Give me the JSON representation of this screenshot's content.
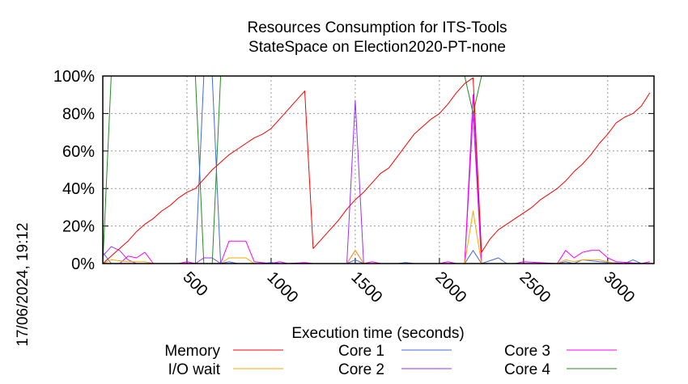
{
  "chart_data": {
    "type": "line",
    "title": [
      "Resources Consumption for ITS-Tools",
      "StateSpace on Election2020-PT-none"
    ],
    "xlabel": "Execution time (seconds)",
    "ylabel": "",
    "xlim": [
      0,
      3275
    ],
    "ylim": [
      0,
      100
    ],
    "grid": true,
    "legend_placement": "bottom",
    "x_ticks": [
      500,
      1000,
      1500,
      2000,
      2500,
      3000
    ],
    "x_tick_labels": [
      "500",
      "1000",
      "1500",
      "2000",
      "2500",
      "3000"
    ],
    "y_ticks": [
      0,
      20,
      40,
      60,
      80,
      100
    ],
    "y_tick_labels": [
      "0%",
      "20%",
      "40%",
      "60%",
      "80%",
      "100%"
    ],
    "timestamp": "17/06/2024, 19:12",
    "series": [
      {
        "name": "Memory",
        "color": "#ff0000",
        "points": [
          [
            0,
            0
          ],
          [
            50,
            4
          ],
          [
            100,
            8
          ],
          [
            150,
            12
          ],
          [
            200,
            17
          ],
          [
            250,
            21
          ],
          [
            300,
            24
          ],
          [
            350,
            28
          ],
          [
            400,
            31
          ],
          [
            450,
            35
          ],
          [
            500,
            38
          ],
          [
            550,
            40
          ],
          [
            600,
            45
          ],
          [
            650,
            50
          ],
          [
            700,
            54
          ],
          [
            750,
            58
          ],
          [
            800,
            61
          ],
          [
            850,
            64
          ],
          [
            900,
            67
          ],
          [
            950,
            69
          ],
          [
            1000,
            72
          ],
          [
            1050,
            77
          ],
          [
            1100,
            82
          ],
          [
            1150,
            87
          ],
          [
            1200,
            92
          ],
          [
            1250,
            8
          ],
          [
            1300,
            13
          ],
          [
            1350,
            18
          ],
          [
            1400,
            23
          ],
          [
            1450,
            29
          ],
          [
            1500,
            34
          ],
          [
            1550,
            38
          ],
          [
            1600,
            43
          ],
          [
            1650,
            48
          ],
          [
            1700,
            51
          ],
          [
            1750,
            57
          ],
          [
            1800,
            63
          ],
          [
            1850,
            69
          ],
          [
            1900,
            73
          ],
          [
            1950,
            77
          ],
          [
            2000,
            80
          ],
          [
            2050,
            85
          ],
          [
            2100,
            91
          ],
          [
            2150,
            96
          ],
          [
            2200,
            99
          ],
          [
            2250,
            6
          ],
          [
            2300,
            13
          ],
          [
            2350,
            18
          ],
          [
            2400,
            21
          ],
          [
            2450,
            24
          ],
          [
            2500,
            27
          ],
          [
            2550,
            30
          ],
          [
            2600,
            34
          ],
          [
            2650,
            37
          ],
          [
            2700,
            40
          ],
          [
            2750,
            44
          ],
          [
            2800,
            49
          ],
          [
            2850,
            53
          ],
          [
            2900,
            58
          ],
          [
            2950,
            64
          ],
          [
            3000,
            69
          ],
          [
            3050,
            75
          ],
          [
            3100,
            78
          ],
          [
            3150,
            80
          ],
          [
            3200,
            84
          ],
          [
            3250,
            91
          ]
        ]
      },
      {
        "name": "I/O wait",
        "color": "#ffa500",
        "points": [
          [
            0,
            0
          ],
          [
            50,
            2
          ],
          [
            150,
            1
          ],
          [
            250,
            1
          ],
          [
            300,
            0
          ],
          [
            700,
            0
          ],
          [
            750,
            3
          ],
          [
            850,
            3
          ],
          [
            900,
            0
          ],
          [
            1450,
            0
          ],
          [
            1500,
            7
          ],
          [
            1550,
            0
          ],
          [
            2150,
            0
          ],
          [
            2200,
            28
          ],
          [
            2250,
            0
          ],
          [
            2700,
            0
          ],
          [
            2750,
            2
          ],
          [
            2800,
            1
          ],
          [
            2850,
            2
          ],
          [
            2950,
            2
          ],
          [
            3000,
            1
          ],
          [
            3050,
            0
          ],
          [
            3250,
            0
          ]
        ]
      },
      {
        "name": "Core 1",
        "color": "#4169e1",
        "points": [
          [
            0,
            6
          ],
          [
            50,
            0
          ],
          [
            550,
            0
          ],
          [
            600,
            100
          ],
          [
            650,
            100
          ],
          [
            700,
            0
          ],
          [
            750,
            1
          ],
          [
            800,
            0
          ],
          [
            950,
            0
          ],
          [
            1000,
            0.5
          ],
          [
            1050,
            0
          ],
          [
            1450,
            0
          ],
          [
            1500,
            2
          ],
          [
            1550,
            0
          ],
          [
            1750,
            0
          ],
          [
            1800,
            0.5
          ],
          [
            1850,
            0
          ],
          [
            2150,
            0
          ],
          [
            2200,
            7
          ],
          [
            2250,
            0
          ],
          [
            2350,
            3
          ],
          [
            2400,
            0
          ],
          [
            2700,
            0
          ],
          [
            2750,
            1
          ],
          [
            2800,
            0
          ],
          [
            2850,
            2
          ],
          [
            2950,
            1
          ],
          [
            3100,
            0
          ],
          [
            3150,
            2
          ],
          [
            3200,
            0
          ],
          [
            3250,
            0
          ]
        ]
      },
      {
        "name": "Core 2",
        "color": "#9b30ff",
        "points": [
          [
            0,
            4
          ],
          [
            50,
            9
          ],
          [
            100,
            7
          ],
          [
            150,
            2
          ],
          [
            200,
            0
          ],
          [
            550,
            0
          ],
          [
            600,
            3
          ],
          [
            650,
            3
          ],
          [
            700,
            0
          ],
          [
            1450,
            0
          ],
          [
            1500,
            87
          ],
          [
            1550,
            0
          ],
          [
            2150,
            0
          ],
          [
            2200,
            80
          ],
          [
            2250,
            0
          ],
          [
            3250,
            0
          ]
        ]
      },
      {
        "name": "Core 3",
        "color": "#ff00ff",
        "points": [
          [
            0,
            0
          ],
          [
            100,
            0
          ],
          [
            150,
            4
          ],
          [
            200,
            3
          ],
          [
            250,
            6
          ],
          [
            300,
            0
          ],
          [
            450,
            0
          ],
          [
            500,
            1
          ],
          [
            550,
            0
          ],
          [
            700,
            0
          ],
          [
            750,
            12
          ],
          [
            850,
            12
          ],
          [
            900,
            1
          ],
          [
            1000,
            0
          ],
          [
            1050,
            1
          ],
          [
            1100,
            0
          ],
          [
            1200,
            0.5
          ],
          [
            1250,
            0
          ],
          [
            1450,
            0
          ],
          [
            1500,
            7
          ],
          [
            1550,
            0
          ],
          [
            1600,
            1
          ],
          [
            1650,
            0
          ],
          [
            2000,
            0
          ],
          [
            2050,
            1
          ],
          [
            2100,
            0
          ],
          [
            2150,
            0
          ],
          [
            2200,
            90
          ],
          [
            2250,
            0
          ],
          [
            2450,
            0
          ],
          [
            2500,
            1
          ],
          [
            2700,
            0
          ],
          [
            2750,
            7
          ],
          [
            2800,
            3
          ],
          [
            2850,
            6
          ],
          [
            2900,
            7
          ],
          [
            2950,
            7
          ],
          [
            3000,
            3
          ],
          [
            3050,
            1
          ],
          [
            3200,
            0
          ],
          [
            3250,
            1
          ]
        ]
      },
      {
        "name": "Core 4",
        "color": "#228b22",
        "points": [
          [
            0,
            0
          ],
          [
            50,
            100
          ],
          [
            550,
            100
          ],
          [
            600,
            0
          ],
          [
            650,
            0
          ],
          [
            700,
            100
          ],
          [
            2150,
            100
          ],
          [
            2200,
            80
          ],
          [
            2250,
            100
          ],
          [
            3250,
            100
          ]
        ]
      }
    ]
  }
}
